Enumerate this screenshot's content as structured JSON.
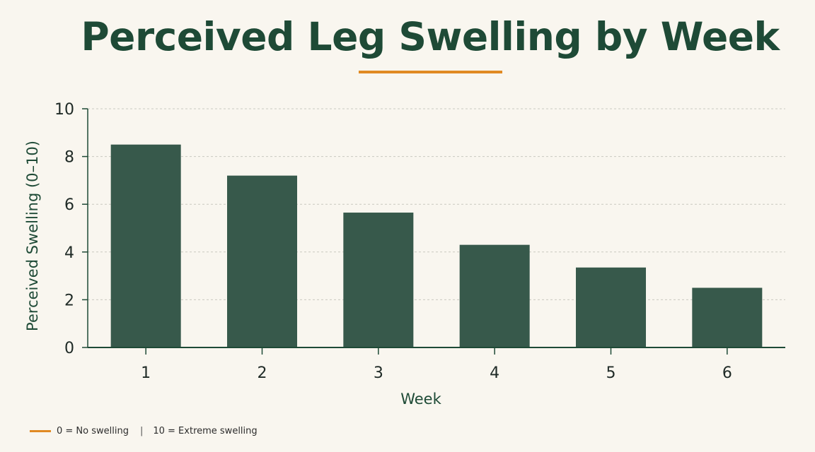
{
  "chart_data": {
    "type": "bar",
    "title": "Perceived Leg Swelling by Week",
    "xlabel": "Week",
    "ylabel": "Perceived Swelling (0–10)",
    "categories": [
      "1",
      "2",
      "3",
      "4",
      "5",
      "6"
    ],
    "values": [
      8.5,
      7.2,
      5.65,
      4.3,
      3.35,
      2.5
    ],
    "ylim": [
      0,
      10
    ],
    "yticks": [
      "0",
      "2",
      "4",
      "6",
      "8",
      "10"
    ],
    "grid": true,
    "legend": "none"
  },
  "footer": {
    "scale_low": "0 = No swelling",
    "separator": "|",
    "scale_high": "10 = Extreme swelling"
  },
  "colors": {
    "bar": "#37594b",
    "title": "#1e4a36",
    "accent": "#e08a23",
    "axis": "#1e4a36",
    "grid": "#c9c9c0",
    "background": "#f9f6ef"
  }
}
